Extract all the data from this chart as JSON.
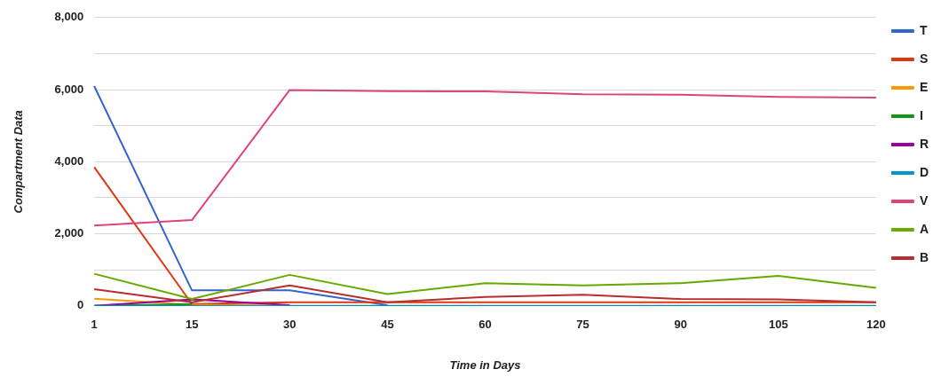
{
  "chart_data": {
    "type": "line",
    "xlabel": "Time in Days",
    "ylabel": "Compartment Data",
    "categories": [
      "1",
      "15",
      "30",
      "45",
      "60",
      "75",
      "90",
      "105",
      "120"
    ],
    "ylim": [
      0,
      8000
    ],
    "yticks": [
      0,
      {
        "value": 1000,
        "label": null
      },
      {
        "value": 2000,
        "label": "2,000"
      },
      {
        "value": 3000,
        "label": null
      },
      {
        "value": 4000,
        "label": "4,000"
      },
      {
        "value": 5000,
        "label": null
      },
      {
        "value": 6000,
        "label": "6,000"
      },
      {
        "value": 7000,
        "label": null
      },
      {
        "value": 8000,
        "label": "8,000"
      }
    ],
    "grid": "y",
    "legend": "right",
    "marker": "none",
    "series": [
      {
        "name": "T",
        "color": "#3366cc",
        "values": [
          6100,
          430,
          430,
          20,
          null,
          null,
          null,
          null,
          null
        ]
      },
      {
        "name": "S",
        "color": "#dc3912",
        "values": [
          3850,
          50,
          100,
          100,
          100,
          100,
          100,
          100,
          100
        ]
      },
      {
        "name": "E",
        "color": "#ff9900",
        "values": [
          200,
          30,
          0,
          null,
          null,
          null,
          null,
          null,
          null
        ]
      },
      {
        "name": "I",
        "color": "#109618",
        "values": [
          0,
          50,
          null,
          null,
          null,
          null,
          null,
          null,
          null
        ]
      },
      {
        "name": "R",
        "color": "#990099",
        "values": [
          0,
          180,
          20,
          null,
          null,
          null,
          null,
          null,
          null
        ]
      },
      {
        "name": "D",
        "color": "#0099c6",
        "values": [
          0,
          0,
          0,
          0,
          0,
          0,
          0,
          0,
          0
        ]
      },
      {
        "name": "V",
        "color": "#dd4477",
        "values": [
          2230,
          2380,
          5990,
          5960,
          5950,
          5870,
          5860,
          5800,
          5780
        ]
      },
      {
        "name": "A",
        "color": "#66aa00",
        "values": [
          890,
          190,
          860,
          330,
          630,
          570,
          630,
          830,
          500
        ]
      },
      {
        "name": "B",
        "color": "#b82e2e",
        "values": [
          460,
          100,
          570,
          100,
          250,
          310,
          190,
          180,
          100
        ]
      }
    ]
  }
}
